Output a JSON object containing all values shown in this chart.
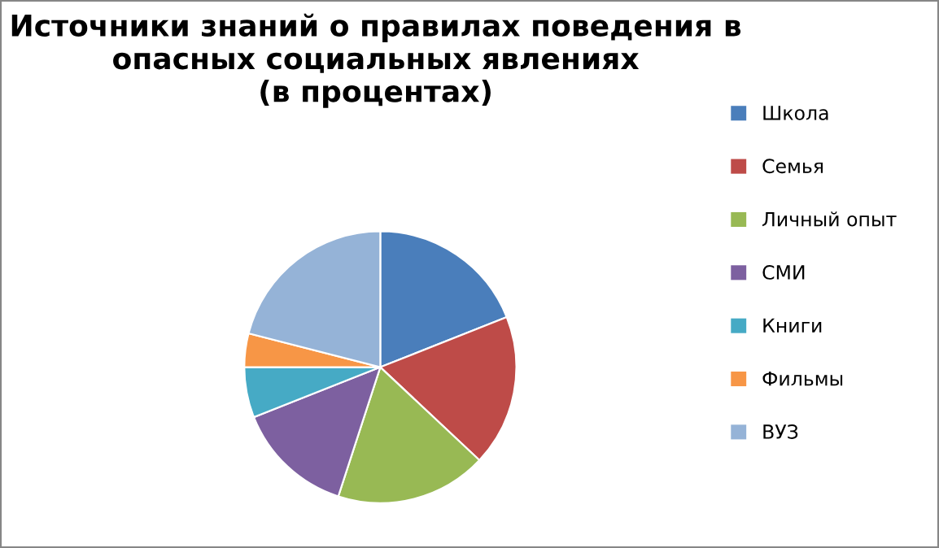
{
  "chart_data": {
    "type": "pie",
    "title": "Источники знаний о правилах поведения в\nопасных социальных явлениях\n(в процентах)",
    "categories": [
      "Школа",
      "Семья",
      "Личный опыт",
      "СМИ",
      "Книги",
      "Фильмы",
      "ВУЗ"
    ],
    "values": [
      19,
      18,
      18,
      14,
      6,
      4,
      21
    ],
    "colors": [
      "#4a7ebb",
      "#be4b48",
      "#98b954",
      "#7d60a0",
      "#46aac5",
      "#f79646",
      "#95b3d7"
    ],
    "legend": "right"
  }
}
